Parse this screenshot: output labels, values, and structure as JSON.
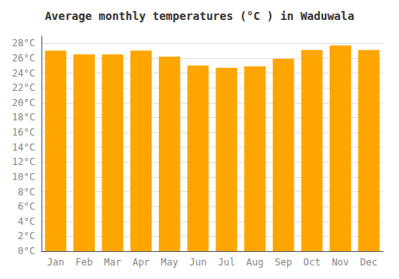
{
  "chart_data": {
    "type": "bar",
    "title": "Average monthly temperatures (°C ) in Waduwala",
    "categories": [
      "Jan",
      "Feb",
      "Mar",
      "Apr",
      "May",
      "Jun",
      "Jul",
      "Aug",
      "Sep",
      "Oct",
      "Nov",
      "Dec"
    ],
    "values": [
      27.0,
      26.5,
      26.5,
      27.0,
      26.2,
      25.0,
      24.7,
      24.9,
      25.9,
      27.1,
      27.7,
      27.1
    ],
    "color": "#FFA500",
    "ylim": [
      0,
      29
    ],
    "yticks": [
      {
        "value": 0,
        "label": "0°C"
      },
      {
        "value": 2,
        "label": "2°C"
      },
      {
        "value": 4,
        "label": "4°C"
      },
      {
        "value": 6,
        "label": "6°C"
      },
      {
        "value": 8,
        "label": "8°C"
      },
      {
        "value": 10,
        "label": "10°C"
      },
      {
        "value": 12,
        "label": "12°C"
      },
      {
        "value": 14,
        "label": "14°C"
      },
      {
        "value": 16,
        "label": "16°C"
      },
      {
        "value": 18,
        "label": "18°C"
      },
      {
        "value": 20,
        "label": "20°C"
      },
      {
        "value": 22,
        "label": "22°C"
      },
      {
        "value": 24,
        "label": "24°C"
      },
      {
        "value": 26,
        "label": "26°C"
      },
      {
        "value": 28,
        "label": "28°C"
      }
    ],
    "grid": true
  }
}
